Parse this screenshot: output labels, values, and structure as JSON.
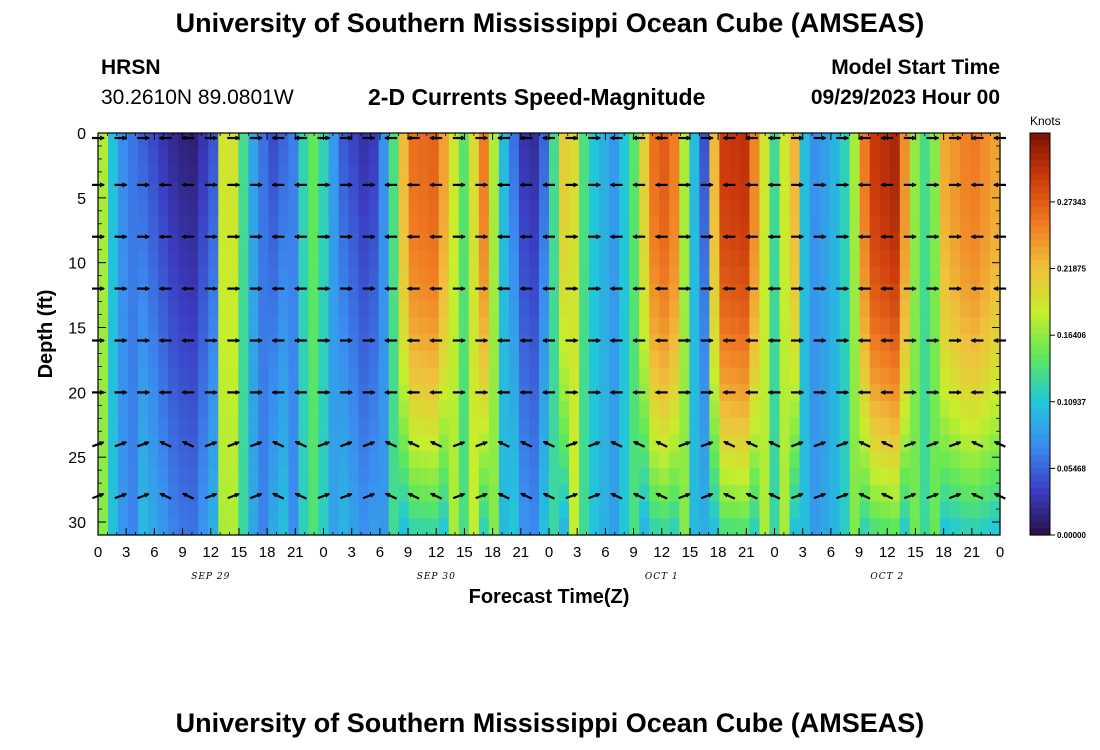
{
  "header": {
    "title": "University of Southern Mississippi Ocean Cube (AMSEAS)",
    "station": "HRSN",
    "coords": "30.2610N  89.0801W",
    "subtitle": "2-D Currents Speed-Magnitude",
    "model_label": "Model Start Time",
    "model_time": "09/29/2023 Hour 00"
  },
  "footer": {
    "title": "University of Southern Mississippi Ocean Cube (AMSEAS)"
  },
  "colors": {
    "palette": [
      "#2a0f4a",
      "#3b3ec4",
      "#3b8cf0",
      "#22c8d8",
      "#5ee85a",
      "#c8ee2c",
      "#f0c03c",
      "#f07a22",
      "#cc3a0c",
      "#7a1204"
    ]
  },
  "chart_data": {
    "type": "heatmap",
    "title": "2-D Currents Speed-Magnitude",
    "xlabel": "Forecast Time(Z)",
    "ylabel": "Depth (ft)",
    "x_range_hours": [
      0,
      96
    ],
    "ylim": [
      0,
      31
    ],
    "x_tick_labels": [
      "0",
      "3",
      "6",
      "9",
      "12",
      "15",
      "18",
      "21",
      "0",
      "3",
      "6",
      "9",
      "12",
      "15",
      "18",
      "21",
      "0",
      "3",
      "6",
      "9",
      "12",
      "15",
      "18",
      "21",
      "0",
      "3",
      "6",
      "9",
      "12",
      "15",
      "18",
      "21",
      "0"
    ],
    "y_ticks": [
      0,
      5,
      10,
      15,
      20,
      25,
      30
    ],
    "y_tick_labels": [
      "0",
      "5",
      "10",
      "15",
      "20",
      "25",
      "30"
    ],
    "day_labels": [
      {
        "hour": 12,
        "label": "SEP 29"
      },
      {
        "hour": 36,
        "label": "SEP 30"
      },
      {
        "hour": 60,
        "label": "OCT 1"
      },
      {
        "hour": 84,
        "label": "OCT 2"
      }
    ],
    "colorbar": {
      "label": "Knots",
      "vmin": 0.0,
      "vmax": 0.33,
      "tick_values": [
        0.0,
        0.05468,
        0.10937,
        0.164,
        0.21875,
        0.27343
      ],
      "tick_labels": [
        "0.00000",
        "0.05468",
        "0.10937",
        "0.16406",
        "0.21875",
        "0.27343"
      ]
    },
    "vector_depths_ft": [
      0,
      4,
      8,
      12,
      16,
      20,
      24,
      28
    ],
    "time_step_hours": 2.4,
    "surface_speed_knots": [
      {
        "hour": 0,
        "v": 0.21
      },
      {
        "hour": 2,
        "v": 0.08
      },
      {
        "hour": 5,
        "v": 0.05
      },
      {
        "hour": 8,
        "v": 0.02
      },
      {
        "hour": 10,
        "v": 0.01
      },
      {
        "hour": 12.5,
        "v": 0.05
      },
      {
        "hour": 13.5,
        "v": 0.22
      },
      {
        "hour": 14.5,
        "v": 0.19
      },
      {
        "hour": 16,
        "v": 0.1
      },
      {
        "hour": 18.5,
        "v": 0.04
      },
      {
        "hour": 21,
        "v": 0.07
      },
      {
        "hour": 22.5,
        "v": 0.16
      },
      {
        "hour": 24,
        "v": 0.12
      },
      {
        "hour": 26,
        "v": 0.05
      },
      {
        "hour": 29,
        "v": 0.02
      },
      {
        "hour": 31,
        "v": 0.1
      },
      {
        "hour": 33,
        "v": 0.26
      },
      {
        "hour": 36,
        "v": 0.27
      },
      {
        "hour": 39,
        "v": 0.14
      },
      {
        "hour": 41,
        "v": 0.26
      },
      {
        "hour": 43,
        "v": 0.11
      },
      {
        "hour": 45,
        "v": 0.03
      },
      {
        "hour": 47,
        "v": 0.02
      },
      {
        "hour": 48.5,
        "v": 0.13
      },
      {
        "hour": 50,
        "v": 0.24
      },
      {
        "hour": 52,
        "v": 0.12
      },
      {
        "hour": 55,
        "v": 0.08
      },
      {
        "hour": 57,
        "v": 0.14
      },
      {
        "hour": 59,
        "v": 0.26
      },
      {
        "hour": 61,
        "v": 0.28
      },
      {
        "hour": 63,
        "v": 0.13
      },
      {
        "hour": 64.5,
        "v": 0.04
      },
      {
        "hour": 66,
        "v": 0.29
      },
      {
        "hour": 69,
        "v": 0.3
      },
      {
        "hour": 72,
        "v": 0.13
      },
      {
        "hour": 74,
        "v": 0.24
      },
      {
        "hour": 75.5,
        "v": 0.07
      },
      {
        "hour": 78,
        "v": 0.09
      },
      {
        "hour": 80,
        "v": 0.13
      },
      {
        "hour": 82,
        "v": 0.29
      },
      {
        "hour": 85,
        "v": 0.31
      },
      {
        "hour": 87,
        "v": 0.16
      },
      {
        "hour": 88.5,
        "v": 0.12
      },
      {
        "hour": 90,
        "v": 0.23
      },
      {
        "hour": 93,
        "v": 0.26
      },
      {
        "hour": 96,
        "v": 0.23
      }
    ]
  }
}
